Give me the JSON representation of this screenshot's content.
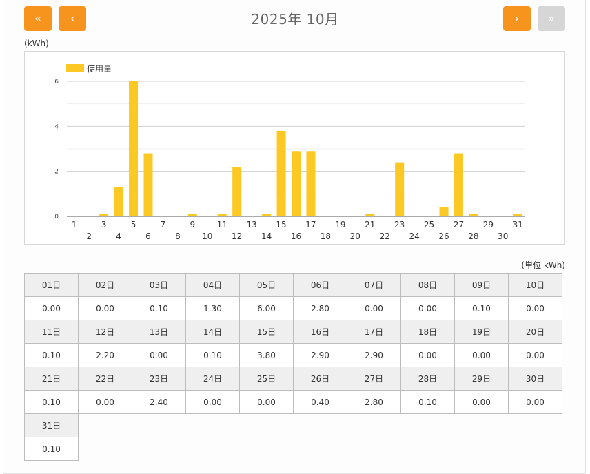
{
  "header": {
    "title": "2025年 10月",
    "first_label": "«",
    "prev_label": "‹",
    "next_label": "›",
    "last_label": "»"
  },
  "chart_unit": "(kWh)",
  "table_unit": "(単位 kWh)",
  "colors": {
    "accent": "#f7941d",
    "disabled": "#d6d6d6",
    "bar": "#fcc823"
  },
  "chart_data": {
    "type": "bar",
    "categories": [
      "1",
      "2",
      "3",
      "4",
      "5",
      "6",
      "7",
      "8",
      "9",
      "10",
      "11",
      "12",
      "13",
      "14",
      "15",
      "16",
      "17",
      "18",
      "19",
      "20",
      "21",
      "22",
      "23",
      "24",
      "25",
      "26",
      "27",
      "28",
      "29",
      "30",
      "31"
    ],
    "series": [
      {
        "name": "使用量",
        "values": [
          0.0,
          0.0,
          0.1,
          1.3,
          6.0,
          2.8,
          0.0,
          0.0,
          0.1,
          0.0,
          0.1,
          2.2,
          0.0,
          0.1,
          3.8,
          2.9,
          2.9,
          0.0,
          0.0,
          0.0,
          0.1,
          0.0,
          2.4,
          0.0,
          0.0,
          0.4,
          2.8,
          0.1,
          0.0,
          0.0,
          0.1
        ]
      }
    ],
    "ylim": [
      0,
      6
    ],
    "yticks": [
      "0",
      "2",
      "4",
      "6"
    ],
    "grid": true,
    "legend_position": "top-left"
  },
  "table": {
    "rows": [
      {
        "days": [
          "01日",
          "02日",
          "03日",
          "04日",
          "05日",
          "06日",
          "07日",
          "08日",
          "09日",
          "10日"
        ],
        "values": [
          "0.00",
          "0.00",
          "0.10",
          "1.30",
          "6.00",
          "2.80",
          "0.00",
          "0.00",
          "0.10",
          "0.00"
        ]
      },
      {
        "days": [
          "11日",
          "12日",
          "13日",
          "14日",
          "15日",
          "16日",
          "17日",
          "18日",
          "19日",
          "20日"
        ],
        "values": [
          "0.10",
          "2.20",
          "0.00",
          "0.10",
          "3.80",
          "2.90",
          "2.90",
          "0.00",
          "0.00",
          "0.00"
        ]
      },
      {
        "days": [
          "21日",
          "22日",
          "23日",
          "24日",
          "25日",
          "26日",
          "27日",
          "28日",
          "29日",
          "30日"
        ],
        "values": [
          "0.10",
          "0.00",
          "2.40",
          "0.00",
          "0.00",
          "0.40",
          "2.80",
          "0.10",
          "0.00",
          "0.00"
        ]
      },
      {
        "days": [
          "31日"
        ],
        "values": [
          "0.10"
        ]
      }
    ]
  }
}
